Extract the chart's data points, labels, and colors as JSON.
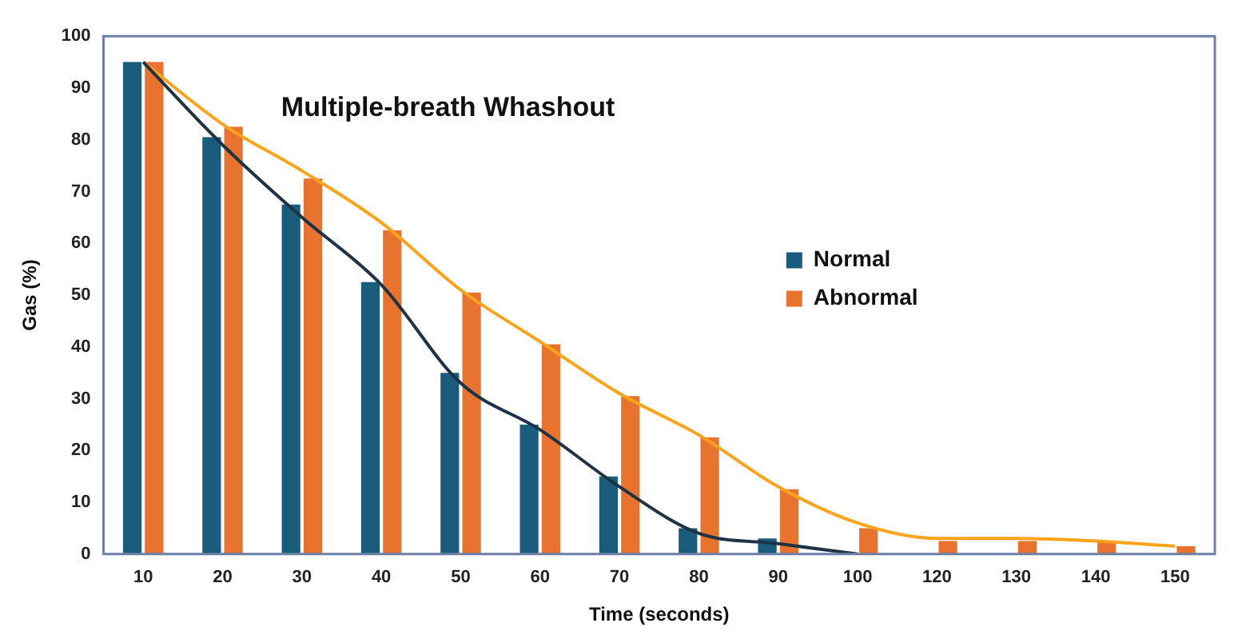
{
  "chart_data": {
    "type": "bar",
    "title": "Multiple-breath Whashout",
    "xlabel": "Time (seconds)",
    "ylabel": "Gas (%)",
    "categories": [
      "10",
      "20",
      "30",
      "40",
      "50",
      "60",
      "70",
      "80",
      "90",
      "100",
      "120",
      "130",
      "140",
      "150"
    ],
    "series": [
      {
        "name": "Normal",
        "color": "#1a5c7c",
        "values": [
          95,
          80.5,
          67.5,
          52.5,
          35,
          25,
          15,
          5,
          3,
          0,
          null,
          null,
          null,
          null
        ]
      },
      {
        "name": "Abnormal",
        "color": "#e8732f",
        "values": [
          95,
          82.5,
          72.5,
          62.5,
          50.5,
          40.5,
          30.5,
          22.5,
          12.5,
          5,
          2.5,
          2.5,
          2.5,
          1.5
        ]
      },
      {
        "type": "line",
        "color": "#1e3446",
        "values": [
          95,
          79,
          65,
          52,
          33,
          24,
          13,
          4,
          2,
          0,
          null,
          null,
          null,
          null
        ]
      },
      {
        "type": "line",
        "color": "#ffa31a",
        "values": [
          95,
          83,
          74,
          64,
          51,
          41,
          31,
          23,
          13,
          6,
          3,
          3,
          2.5,
          1.5
        ]
      }
    ],
    "ylim": [
      0,
      100
    ],
    "yticks": [
      0,
      10,
      20,
      30,
      40,
      50,
      60,
      70,
      80,
      90,
      100
    ],
    "grid": false,
    "legend": "right",
    "marker": "none"
  }
}
